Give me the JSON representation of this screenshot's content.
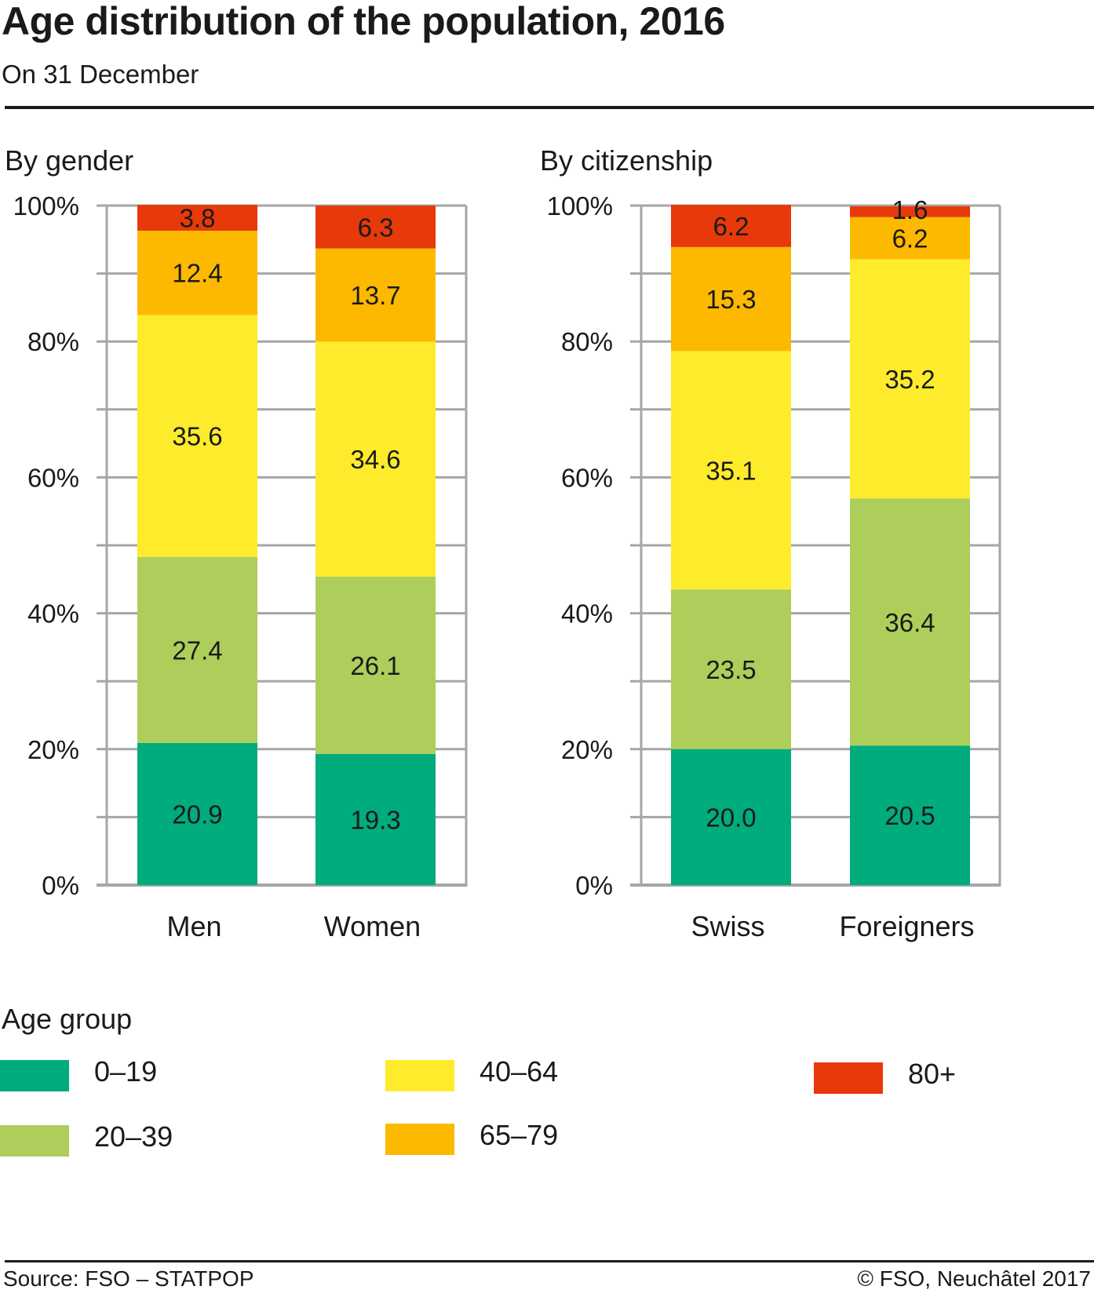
{
  "header": {
    "title": "Age distribution of the population, 2016",
    "subtitle": "On 31 December"
  },
  "legend": {
    "title": "Age group",
    "items": [
      {
        "label": "0–19",
        "color": "#00ab7e"
      },
      {
        "label": "20–39",
        "color": "#adce5a"
      },
      {
        "label": "40–64",
        "color": "#fdeb2c"
      },
      {
        "label": "65–79",
        "color": "#fdb900"
      },
      {
        "label": "80+",
        "color": "#e7390a"
      }
    ]
  },
  "footer": {
    "source": "Source: FSO – STATPOP",
    "copyright": "© FSO, Neuchâtel 2017"
  },
  "chart_data": [
    {
      "type": "bar",
      "stacked": true,
      "title": "By gender",
      "xlabel": "",
      "ylabel": "",
      "ylim": [
        0,
        100
      ],
      "yticks": [
        "0%",
        "20%",
        "40%",
        "60%",
        "80%",
        "100%"
      ],
      "grid": true,
      "categories": [
        "Men",
        "Women"
      ],
      "series": [
        {
          "name": "0–19",
          "values": [
            20.9,
            19.3
          ]
        },
        {
          "name": "20–39",
          "values": [
            27.4,
            26.1
          ]
        },
        {
          "name": "40–64",
          "values": [
            35.6,
            34.6
          ]
        },
        {
          "name": "65–79",
          "values": [
            12.4,
            13.7
          ]
        },
        {
          "name": "80+",
          "values": [
            3.8,
            6.3
          ]
        }
      ],
      "legend_position": "bottom"
    },
    {
      "type": "bar",
      "stacked": true,
      "title": "By citizenship",
      "xlabel": "",
      "ylabel": "",
      "ylim": [
        0,
        100
      ],
      "yticks": [
        "0%",
        "20%",
        "40%",
        "60%",
        "80%",
        "100%"
      ],
      "grid": true,
      "categories": [
        "Swiss",
        "Foreigners"
      ],
      "series": [
        {
          "name": "0–19",
          "values": [
            20.0,
            20.5
          ]
        },
        {
          "name": "20–39",
          "values": [
            23.5,
            36.4
          ]
        },
        {
          "name": "40–64",
          "values": [
            35.1,
            35.2
          ]
        },
        {
          "name": "65–79",
          "values": [
            15.3,
            6.2
          ]
        },
        {
          "name": "80+",
          "values": [
            6.2,
            1.6
          ]
        }
      ],
      "legend_position": "bottom"
    }
  ]
}
